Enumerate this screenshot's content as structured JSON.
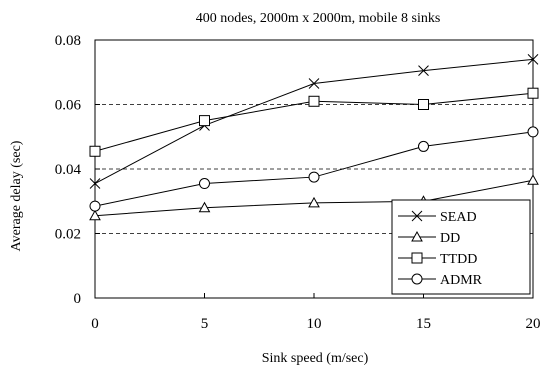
{
  "chart_data": {
    "type": "line",
    "title": "400 nodes, 2000m x 2000m, mobile 8 sinks",
    "xlabel": "Sink speed (m/sec)",
    "ylabel": "Average delay (sec)",
    "x": [
      0,
      5,
      10,
      15,
      20
    ],
    "xlim": [
      0,
      20
    ],
    "ylim": [
      0,
      0.08
    ],
    "xticks": [
      "0",
      "5",
      "10",
      "15",
      "20"
    ],
    "yticks": [
      "0",
      "0.02",
      "0.04",
      "0.06",
      "0.08"
    ],
    "grid": "horizontal dashed",
    "legend_position": "bottom-right",
    "series": [
      {
        "name": "SEAD",
        "marker": "x",
        "values": [
          0.0355,
          0.0535,
          0.0665,
          0.0705,
          0.074
        ]
      },
      {
        "name": "DD",
        "marker": "triangle",
        "values": [
          0.0255,
          0.028,
          0.0295,
          0.03,
          0.0365
        ]
      },
      {
        "name": "TTDD",
        "marker": "square",
        "values": [
          0.0455,
          0.055,
          0.061,
          0.06,
          0.0635
        ]
      },
      {
        "name": "ADMR",
        "marker": "circle",
        "values": [
          0.0285,
          0.0355,
          0.0375,
          0.047,
          0.0515
        ]
      }
    ]
  }
}
